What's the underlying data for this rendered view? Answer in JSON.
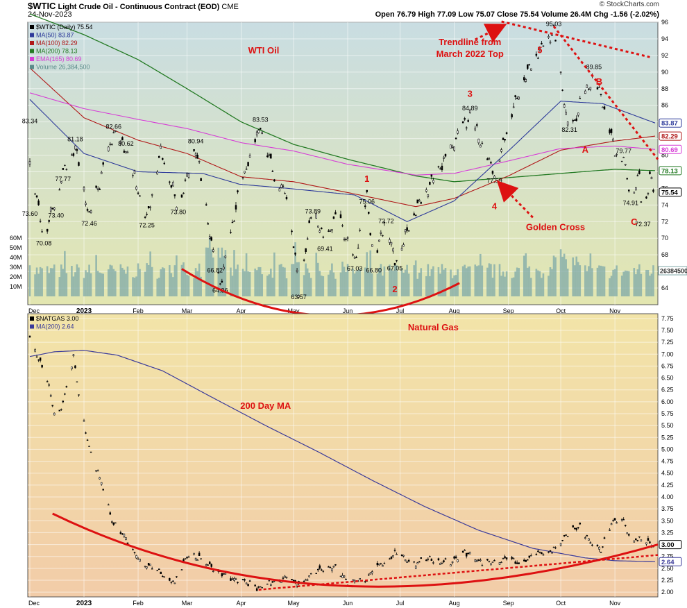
{
  "header": {
    "symbol": "$WTIC",
    "name": "Light Crude Oil - Continuous Contract (EOD)",
    "exchange": "CME",
    "date": "24-Nov-2023",
    "ohlc": "Open 76.79  High 77.09  Low 75.07  Close 75.54  Volume 26.4M  Chg -1.56 (-2.02%)",
    "watermark": "© StockCharts.com"
  },
  "colors": {
    "top_bg_top": "#c9dde2",
    "top_bg_bottom": "#e3e6b0",
    "bottom_bg_top": "#f2e4a8",
    "bottom_bg_bottom": "#f2cca8",
    "ma50": "#2d3a9a",
    "ma100": "#b01818",
    "ma200": "#237a23",
    "ema165": "#d63cd6",
    "volume": "#7ea8a8",
    "annotation": "#dd1111",
    "natgas_ma": "#3a3a9a"
  },
  "chart_data": [
    {
      "type": "candlestick",
      "title": "$WTIC Light Crude Oil - Continuous Contract (EOD)",
      "panel_label": "WTI Oil",
      "legend": [
        {
          "label": "$WTIC (Daily) 75.54",
          "color": "#000000"
        },
        {
          "label": "MA(50) 83.87",
          "color": "#2d3a9a"
        },
        {
          "label": "MA(100) 82.29",
          "color": "#b01818"
        },
        {
          "label": "MA(200) 78.13",
          "color": "#237a23"
        },
        {
          "label": "EMA(165) 80.69",
          "color": "#d63cd6"
        },
        {
          "label": "Volume 26,384,500",
          "color": "#5a8a8a"
        }
      ],
      "x_tick_labels": [
        "Dec",
        "2023",
        "Feb",
        "Mar",
        "Apr",
        "May",
        "Jun",
        "Jul",
        "Aug",
        "Sep",
        "Oct",
        "Nov"
      ],
      "ylim": [
        62,
        96
      ],
      "y_ticks": [
        64,
        66,
        68,
        70,
        72,
        74,
        76,
        78,
        80,
        82,
        84,
        86,
        88,
        90,
        92,
        94,
        96
      ],
      "volume_ticks": [
        "10M",
        "20M",
        "30M",
        "40M",
        "50M",
        "60M"
      ],
      "volume_last": "26384500",
      "price_anchors": [
        {
          "d": "Dec 01",
          "v": 79.5
        },
        {
          "d": "Dec 06",
          "v": 73.6
        },
        {
          "d": "Dec 09",
          "v": 70.08
        },
        {
          "d": "Dec 20",
          "v": 77.77
        },
        {
          "d": "Dec 27",
          "v": 81.18
        },
        {
          "d": "Jan 04",
          "v": 72.46
        },
        {
          "d": "Jan 18",
          "v": 82.66
        },
        {
          "d": "Jan 25",
          "v": 80.62
        },
        {
          "d": "Feb 06",
          "v": 72.25
        },
        {
          "d": "Feb 14",
          "v": 80.6
        },
        {
          "d": "Feb 24",
          "v": 73.8
        },
        {
          "d": "Mar 06",
          "v": 80.94
        },
        {
          "d": "Mar 17",
          "v": 66.82
        },
        {
          "d": "Mar 20",
          "v": 64.36
        },
        {
          "d": "Mar 31",
          "v": 75.7
        },
        {
          "d": "Apr 12",
          "v": 83.53
        },
        {
          "d": "Apr 20",
          "v": 77.5
        },
        {
          "d": "Apr 28",
          "v": 75.0
        },
        {
          "d": "May 04",
          "v": 63.57
        },
        {
          "d": "May 12",
          "v": 73.89
        },
        {
          "d": "May 19",
          "v": 69.41
        },
        {
          "d": "May 26",
          "v": 72.9
        },
        {
          "d": "Jun 05",
          "v": 67.03
        },
        {
          "d": "Jun 12",
          "v": 75.06
        },
        {
          "d": "Jun 16",
          "v": 66.8
        },
        {
          "d": "Jun 23",
          "v": 72.72
        },
        {
          "d": "Jun 28",
          "v": 67.05
        },
        {
          "d": "Jul 10",
          "v": 73.5
        },
        {
          "d": "Jul 24",
          "v": 78.5
        },
        {
          "d": "Aug 10",
          "v": 84.89
        },
        {
          "d": "Aug 24",
          "v": 77.59
        },
        {
          "d": "Sep 05",
          "v": 86.5
        },
        {
          "d": "Sep 15",
          "v": 91.5
        },
        {
          "d": "Sep 27",
          "v": 95.03
        },
        {
          "d": "Oct 06",
          "v": 82.31
        },
        {
          "d": "Oct 12",
          "v": 86.0
        },
        {
          "d": "Oct 20",
          "v": 89.85
        },
        {
          "d": "Oct 27",
          "v": 85.0
        },
        {
          "d": "Nov 01",
          "v": 80.5
        },
        {
          "d": "Nov 06",
          "v": 79.77
        },
        {
          "d": "Nov 10",
          "v": 74.91
        },
        {
          "d": "Nov 15",
          "v": 77.5
        },
        {
          "d": "Nov 17",
          "v": 72.37
        },
        {
          "d": "Nov 21",
          "v": 77.5
        },
        {
          "d": "Nov 24",
          "v": 75.54
        }
      ],
      "ma50_anchors": [
        {
          "d": "Dec 01",
          "v": 86.7
        },
        {
          "d": "Jan 01",
          "v": 80.2
        },
        {
          "d": "Feb 01",
          "v": 78.0
        },
        {
          "d": "Mar 10",
          "v": 77.8
        },
        {
          "d": "Mar 31",
          "v": 76.5
        },
        {
          "d": "Apr 28",
          "v": 76.0
        },
        {
          "d": "Jun 05",
          "v": 75.2
        },
        {
          "d": "Jul 05",
          "v": 72.0
        },
        {
          "d": "Aug 01",
          "v": 74.5
        },
        {
          "d": "Sep 01",
          "v": 80.5
        },
        {
          "d": "Oct 01",
          "v": 86.5
        },
        {
          "d": "Oct 25",
          "v": 86.2
        },
        {
          "d": "Nov 24",
          "v": 83.87
        }
      ],
      "ma100_anchors": [
        {
          "d": "Dec 01",
          "v": 90.5
        },
        {
          "d": "Jan 01",
          "v": 84.5
        },
        {
          "d": "Feb 01",
          "v": 81.8
        },
        {
          "d": "Mar 01",
          "v": 80.2
        },
        {
          "d": "Apr 01",
          "v": 77.4
        },
        {
          "d": "May 01",
          "v": 76.8
        },
        {
          "d": "Jun 01",
          "v": 75.5
        },
        {
          "d": "Jul 10",
          "v": 73.8
        },
        {
          "d": "Aug 01",
          "v": 74.8
        },
        {
          "d": "Sep 01",
          "v": 77.5
        },
        {
          "d": "Oct 01",
          "v": 80.6
        },
        {
          "d": "Nov 01",
          "v": 81.7
        },
        {
          "d": "Nov 24",
          "v": 82.29
        }
      ],
      "ma200_anchors": [
        {
          "d": "Dec 01",
          "v": 97.0
        },
        {
          "d": "Jan 01",
          "v": 94.5
        },
        {
          "d": "Feb 01",
          "v": 91.5
        },
        {
          "d": "Mar 01",
          "v": 88.0
        },
        {
          "d": "Apr 01",
          "v": 84.0
        },
        {
          "d": "May 01",
          "v": 81.3
        },
        {
          "d": "Jun 01",
          "v": 79.5
        },
        {
          "d": "Jul 10",
          "v": 77.5
        },
        {
          "d": "Aug 01",
          "v": 76.8
        },
        {
          "d": "Sep 01",
          "v": 77.3
        },
        {
          "d": "Oct 01",
          "v": 77.8
        },
        {
          "d": "Nov 01",
          "v": 78.3
        },
        {
          "d": "Nov 24",
          "v": 78.13
        }
      ],
      "ema165_anchors": [
        {
          "d": "Dec 01",
          "v": 87.5
        },
        {
          "d": "Jan 01",
          "v": 85.6
        },
        {
          "d": "Feb 01",
          "v": 84.3
        },
        {
          "d": "Mar 01",
          "v": 83.2
        },
        {
          "d": "Apr 01",
          "v": 81.5
        },
        {
          "d": "May 01",
          "v": 80.5
        },
        {
          "d": "Jun 01",
          "v": 78.9
        },
        {
          "d": "Jul 10",
          "v": 77.6
        },
        {
          "d": "Aug 01",
          "v": 77.8
        },
        {
          "d": "Sep 01",
          "v": 79.3
        },
        {
          "d": "Oct 01",
          "v": 80.8
        },
        {
          "d": "Nov 01",
          "v": 81.1
        },
        {
          "d": "Nov 24",
          "v": 80.69
        }
      ],
      "labels": [
        {
          "d": "Dec 01",
          "v": 83.34,
          "text": "83.34"
        },
        {
          "d": "Dec 01",
          "v": 73.6,
          "text": "73.60"
        },
        {
          "d": "Dec 09",
          "v": 70.08,
          "text": "70.08"
        },
        {
          "d": "Dec 20",
          "v": 77.77,
          "text": "77.77"
        },
        {
          "d": "Dec 27",
          "v": 81.18,
          "text": "81.18"
        },
        {
          "d": "Dec 16",
          "v": 73.4,
          "text": "73.40"
        },
        {
          "d": "Jan 04",
          "v": 72.46,
          "text": "72.46"
        },
        {
          "d": "Jan 18",
          "v": 82.66,
          "text": "82.66"
        },
        {
          "d": "Jan 25",
          "v": 80.62,
          "text": "80.62"
        },
        {
          "d": "Feb 06",
          "v": 72.25,
          "text": "72.25"
        },
        {
          "d": "Feb 24",
          "v": 73.8,
          "text": "73.80"
        },
        {
          "d": "Mar 06",
          "v": 80.94,
          "text": "80.94"
        },
        {
          "d": "Mar 17",
          "v": 66.82,
          "text": "66.82"
        },
        {
          "d": "Mar 20",
          "v": 64.36,
          "text": "64.36"
        },
        {
          "d": "Apr 12",
          "v": 83.53,
          "text": "83.53"
        },
        {
          "d": "May 04",
          "v": 63.57,
          "text": "63.57"
        },
        {
          "d": "May 12",
          "v": 73.89,
          "text": "73.89"
        },
        {
          "d": "May 19",
          "v": 69.41,
          "text": "69.41"
        },
        {
          "d": "Jun 05",
          "v": 67.03,
          "text": "67.03"
        },
        {
          "d": "Jun 12",
          "v": 75.06,
          "text": "75.06"
        },
        {
          "d": "Jun 16",
          "v": 66.8,
          "text": "66.80"
        },
        {
          "d": "Jun 23",
          "v": 72.72,
          "text": "72.72"
        },
        {
          "d": "Jun 28",
          "v": 67.05,
          "text": "67.05"
        },
        {
          "d": "Aug 10",
          "v": 84.89,
          "text": "84.89"
        },
        {
          "d": "Aug 24",
          "v": 77.59,
          "text": "77.59"
        },
        {
          "d": "Sep 27",
          "v": 95.03,
          "text": "95.03"
        },
        {
          "d": "Oct 06",
          "v": 82.31,
          "text": "82.31"
        },
        {
          "d": "Oct 20",
          "v": 89.85,
          "text": "89.85"
        },
        {
          "d": "Nov 06",
          "v": 79.77,
          "text": "79.77"
        },
        {
          "d": "Nov 10",
          "v": 74.91,
          "text": "74.91"
        },
        {
          "d": "Nov 17",
          "v": 72.37,
          "text": "72.37"
        }
      ],
      "right_badges": [
        {
          "v": 83.87,
          "text": "83.87",
          "color": "#2d3a9a"
        },
        {
          "v": 82.29,
          "text": "82.29",
          "color": "#b01818"
        },
        {
          "v": 80.69,
          "text": "80.69",
          "color": "#d63cd6"
        },
        {
          "v": 78.13,
          "text": "78.13",
          "color": "#237a23"
        },
        {
          "v": 75.54,
          "text": "75.54",
          "color": "#000000"
        }
      ],
      "annotations": {
        "wave_labels": [
          {
            "d": "Jun 12",
            "v": 76.8,
            "text": "1"
          },
          {
            "d": "Jun 28",
            "v": 63.5,
            "text": "2"
          },
          {
            "d": "Aug 10",
            "v": 87.0,
            "text": "3"
          },
          {
            "d": "Aug 24",
            "v": 73.5,
            "text": "4"
          },
          {
            "d": "Sep 19",
            "v": 92.3,
            "text": "5"
          },
          {
            "d": "Oct 15",
            "v": 80.3,
            "text": "A"
          },
          {
            "d": "Oct 23",
            "v": 88.5,
            "text": "B"
          },
          {
            "d": "Nov 12",
            "v": 71.6,
            "text": "C"
          }
        ],
        "notes": [
          "Trendline from",
          "March 2022 Top",
          "Golden Cross"
        ]
      }
    },
    {
      "type": "candlestick",
      "title": "$NATGAS 3.00",
      "panel_label": "Natural Gas",
      "ma_label": "200 Day MA",
      "legend": [
        {
          "label": "$NATGAS 3.00",
          "color": "#000000"
        },
        {
          "label": "MA(200) 2.64",
          "color": "#3a3a9a"
        }
      ],
      "x_tick_labels": [
        "Dec",
        "2023",
        "Feb",
        "Mar",
        "Apr",
        "May",
        "Jun",
        "Jul",
        "Aug",
        "Sep",
        "Oct",
        "Nov"
      ],
      "ylim": [
        1.9,
        7.85
      ],
      "y_ticks": [
        2.0,
        2.25,
        2.5,
        2.75,
        3.0,
        3.25,
        3.5,
        3.75,
        4.0,
        4.25,
        4.5,
        4.75,
        5.0,
        5.25,
        5.5,
        5.75,
        6.0,
        6.25,
        6.5,
        6.75,
        7.0,
        7.25,
        7.5,
        7.75
      ],
      "price_anchors": [
        {
          "d": "Dec 01",
          "v": 7.4
        },
        {
          "d": "Dec 06",
          "v": 6.9
        },
        {
          "d": "Dec 12",
          "v": 6.3
        },
        {
          "d": "Dec 16",
          "v": 5.6
        },
        {
          "d": "Dec 21",
          "v": 6.1
        },
        {
          "d": "Dec 26",
          "v": 6.95
        },
        {
          "d": "Dec 30",
          "v": 5.9
        },
        {
          "d": "Jan 05",
          "v": 4.9
        },
        {
          "d": "Jan 12",
          "v": 4.2
        },
        {
          "d": "Jan 17",
          "v": 3.5
        },
        {
          "d": "Jan 26",
          "v": 3.05
        },
        {
          "d": "Feb 03",
          "v": 2.6
        },
        {
          "d": "Feb 10",
          "v": 2.5
        },
        {
          "d": "Feb 22",
          "v": 2.2
        },
        {
          "d": "Mar 03",
          "v": 2.85
        },
        {
          "d": "Mar 14",
          "v": 2.55
        },
        {
          "d": "Mar 27",
          "v": 2.25
        },
        {
          "d": "Apr 07",
          "v": 2.2
        },
        {
          "d": "Apr 12",
          "v": 2.05
        },
        {
          "d": "Apr 20",
          "v": 2.25
        },
        {
          "d": "Apr 26",
          "v": 2.3
        },
        {
          "d": "May 02",
          "v": 2.15
        },
        {
          "d": "May 10",
          "v": 2.3
        },
        {
          "d": "May 17",
          "v": 2.5
        },
        {
          "d": "May 24",
          "v": 2.55
        },
        {
          "d": "Jun 01",
          "v": 2.2
        },
        {
          "d": "Jun 12",
          "v": 2.3
        },
        {
          "d": "Jun 20",
          "v": 2.6
        },
        {
          "d": "Jun 28",
          "v": 2.8
        },
        {
          "d": "Jul 08",
          "v": 2.6
        },
        {
          "d": "Jul 20",
          "v": 2.7
        },
        {
          "d": "Jul 29",
          "v": 2.6
        },
        {
          "d": "Aug 07",
          "v": 2.85
        },
        {
          "d": "Aug 17",
          "v": 2.6
        },
        {
          "d": "Aug 31",
          "v": 2.7
        },
        {
          "d": "Sep 07",
          "v": 2.6
        },
        {
          "d": "Sep 18",
          "v": 2.8
        },
        {
          "d": "Sep 29",
          "v": 2.9
        },
        {
          "d": "Oct 06",
          "v": 3.3
        },
        {
          "d": "Oct 12",
          "v": 3.4
        },
        {
          "d": "Oct 18",
          "v": 3.05
        },
        {
          "d": "Oct 24",
          "v": 2.9
        },
        {
          "d": "Oct 30",
          "v": 3.45
        },
        {
          "d": "Nov 06",
          "v": 3.5
        },
        {
          "d": "Nov 10",
          "v": 3.15
        },
        {
          "d": "Nov 17",
          "v": 3.05
        },
        {
          "d": "Nov 24",
          "v": 3.0
        }
      ],
      "ma_anchors": [
        {
          "d": "Dec 01",
          "v": 6.95
        },
        {
          "d": "Dec 15",
          "v": 7.05
        },
        {
          "d": "Jan 01",
          "v": 7.08
        },
        {
          "d": "Jan 20",
          "v": 6.98
        },
        {
          "d": "Feb 15",
          "v": 6.65
        },
        {
          "d": "Mar 15",
          "v": 6.1
        },
        {
          "d": "Apr 15",
          "v": 5.5
        },
        {
          "d": "May 15",
          "v": 4.95
        },
        {
          "d": "Jun 15",
          "v": 4.35
        },
        {
          "d": "Jul 15",
          "v": 3.8
        },
        {
          "d": "Aug 15",
          "v": 3.3
        },
        {
          "d": "Sep 15",
          "v": 2.92
        },
        {
          "d": "Oct 15",
          "v": 2.72
        },
        {
          "d": "Nov 01",
          "v": 2.66
        },
        {
          "d": "Nov 24",
          "v": 2.64
        }
      ],
      "right_badges": [
        {
          "v": 3.0,
          "text": "3.00",
          "color": "#000000"
        },
        {
          "v": 2.64,
          "text": "2.64",
          "color": "#3a3a9a"
        }
      ]
    }
  ]
}
